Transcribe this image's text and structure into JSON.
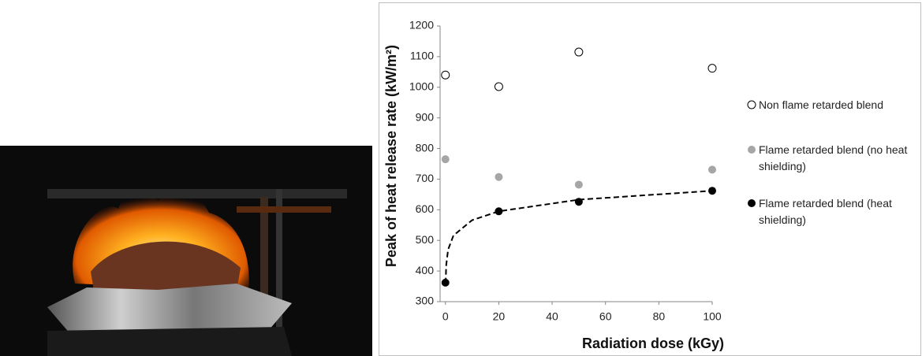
{
  "chart_data": {
    "type": "scatter",
    "x_label": "Radiation dose (kGy)",
    "y_label": "Peak of heat release rate (kW/m²)",
    "xlim": [
      -2,
      100
    ],
    "xticks": [
      0,
      20,
      40,
      60,
      80,
      100
    ],
    "ylim": [
      300,
      1200
    ],
    "yticks": [
      300,
      400,
      500,
      600,
      700,
      800,
      900,
      1000,
      1100,
      1200
    ],
    "grid": false,
    "legend": "right",
    "series": [
      {
        "name": "Non flame retarded blend",
        "color": "#000000",
        "marker": "hollow",
        "x": [
          0,
          20,
          50,
          100
        ],
        "values": [
          1040,
          1002,
          1115,
          1062
        ]
      },
      {
        "name": "Flame retarded blend (no heat shielding)",
        "color": "#a6a6a6",
        "marker": "filled",
        "x": [
          0,
          20,
          50,
          100
        ],
        "values": [
          765,
          707,
          682,
          731
        ]
      },
      {
        "name": "Flame retarded blend (heat shielding)",
        "color": "#000000",
        "marker": "filled",
        "x": [
          0,
          20,
          50,
          100
        ],
        "values": [
          362,
          595,
          626,
          662
        ]
      }
    ],
    "trendline": {
      "style": "dashed",
      "color": "#000000",
      "x": [
        0.07,
        0.3,
        1,
        3,
        10,
        20,
        50,
        100
      ],
      "values": [
        360,
        420,
        470,
        516,
        566,
        595,
        633,
        662
      ]
    }
  }
}
